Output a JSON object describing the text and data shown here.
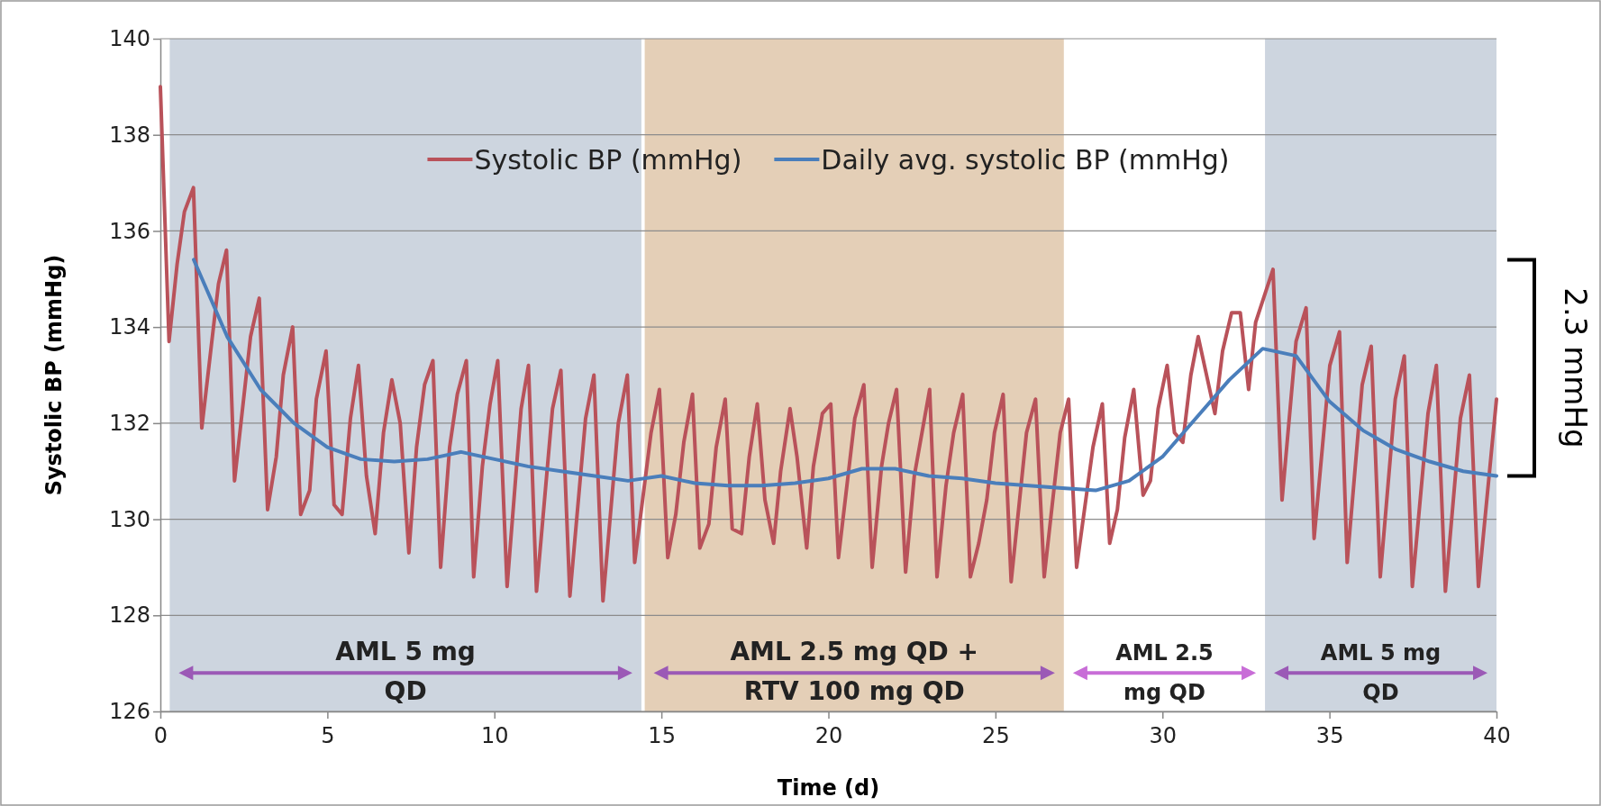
{
  "chart_data": {
    "type": "line",
    "xlabel": "Time (d)",
    "ylabel": "Systolic BP (mmHg)",
    "xlim": [
      0,
      40
    ],
    "xticks": [
      0,
      5,
      10,
      15,
      20,
      25,
      30,
      35,
      40
    ],
    "ylim": [
      126,
      140
    ],
    "yticks": [
      126,
      128,
      130,
      132,
      134,
      136,
      138,
      140
    ],
    "grid": "y",
    "legend": "top",
    "series": [
      {
        "name": "Systolic BP (mmHg)",
        "color": "#b9525a",
        "x": [
          0,
          0.26,
          0.5,
          0.72,
          0.99,
          1.24,
          1.74,
          1.98,
          2.22,
          2.7,
          2.96,
          3.21,
          3.47,
          3.68,
          3.96,
          4.2,
          4.47,
          4.67,
          4.96,
          5.2,
          5.44,
          5.69,
          5.93,
          6.17,
          6.43,
          6.68,
          6.93,
          7.18,
          7.44,
          7.67,
          7.91,
          8.16,
          8.39,
          8.66,
          8.89,
          9.16,
          9.38,
          9.64,
          9.87,
          10.1,
          10.38,
          10.8,
          11.02,
          11.26,
          11.74,
          11.99,
          12.26,
          12.73,
          12.98,
          13.25,
          13.71,
          13.98,
          14.2,
          14.69,
          14.94,
          15.19,
          15.43,
          15.67,
          15.93,
          16.15,
          16.42,
          16.64,
          16.91,
          17.12,
          17.4,
          17.63,
          17.87,
          18.1,
          18.36,
          18.57,
          18.85,
          19.06,
          19.35,
          19.55,
          19.82,
          20.07,
          20.3,
          20.79,
          21.06,
          21.31,
          21.59,
          21.8,
          22.04,
          22.31,
          22.57,
          22.8,
          23.03,
          23.25,
          23.52,
          23.75,
          24.02,
          24.25,
          24.5,
          24.74,
          24.97,
          25.23,
          25.47,
          25.93,
          26.2,
          26.46,
          26.94,
          27.19,
          27.43,
          27.92,
          28.2,
          28.42,
          28.65,
          28.87,
          29.14,
          29.42,
          29.64,
          29.87,
          30.14,
          30.36,
          30.61,
          30.85,
          31.07,
          31.57,
          31.8,
          32.07,
          32.33,
          32.58,
          32.79,
          33.31,
          33.58,
          34.0,
          34.3,
          34.54,
          35.01,
          35.3,
          35.53,
          35.98,
          36.25,
          36.52,
          36.97,
          37.24,
          37.48,
          37.95,
          38.2,
          38.47,
          38.92,
          39.19,
          39.46,
          40
        ],
        "values": [
          139.0,
          133.7,
          135.3,
          136.4,
          136.9,
          131.9,
          134.9,
          135.6,
          130.8,
          133.8,
          134.6,
          130.2,
          131.3,
          133.0,
          134.0,
          130.1,
          130.6,
          132.5,
          133.5,
          130.3,
          130.1,
          132.1,
          133.2,
          130.9,
          129.7,
          131.8,
          132.9,
          132.0,
          129.3,
          131.5,
          132.8,
          133.3,
          129.0,
          131.5,
          132.6,
          133.3,
          128.8,
          131.1,
          132.4,
          133.3,
          128.6,
          132.3,
          133.2,
          128.5,
          132.3,
          133.1,
          128.4,
          132.1,
          133.0,
          128.3,
          132.0,
          133.0,
          129.1,
          131.8,
          132.7,
          129.2,
          130.1,
          131.6,
          132.6,
          129.4,
          129.9,
          131.5,
          132.5,
          129.8,
          129.7,
          131.3,
          132.4,
          130.4,
          129.5,
          131.0,
          132.3,
          131.3,
          129.4,
          131.1,
          132.2,
          132.4,
          129.2,
          132.1,
          132.8,
          129.0,
          131.1,
          132.0,
          132.7,
          128.9,
          130.9,
          131.8,
          132.7,
          128.8,
          130.7,
          131.8,
          132.6,
          128.8,
          129.5,
          130.4,
          131.8,
          132.6,
          128.7,
          131.8,
          132.5,
          128.8,
          131.8,
          132.5,
          129.0,
          131.5,
          132.4,
          129.5,
          130.2,
          131.7,
          132.7,
          130.5,
          130.8,
          132.3,
          133.2,
          131.8,
          131.6,
          133.0,
          133.8,
          132.2,
          133.5,
          134.3,
          134.3,
          132.7,
          134.1,
          135.2,
          130.4,
          133.7,
          134.4,
          129.6,
          133.2,
          133.9,
          129.1,
          132.8,
          133.6,
          128.8,
          132.5,
          133.4,
          128.6,
          132.2,
          133.2,
          128.5,
          132.1,
          133.0,
          128.6,
          132.5
        ]
      },
      {
        "name": "Daily avg. systolic BP (mmHg)",
        "color": "#4a7ebb",
        "x": [
          1,
          2,
          3,
          4,
          5,
          6,
          7,
          8,
          9,
          10,
          11,
          12,
          13,
          14,
          15,
          16,
          17,
          18,
          19,
          20,
          21,
          22,
          23,
          24,
          25,
          26,
          27,
          28,
          29,
          30,
          31,
          32,
          33,
          34,
          35,
          36,
          37,
          38,
          39,
          40
        ],
        "values": [
          135.4,
          133.8,
          132.7,
          132.0,
          131.5,
          131.25,
          131.2,
          131.25,
          131.4,
          131.25,
          131.1,
          131.0,
          130.9,
          130.8,
          130.9,
          130.75,
          130.7,
          130.7,
          130.75,
          130.85,
          131.05,
          131.05,
          130.9,
          130.85,
          130.75,
          130.7,
          130.65,
          130.6,
          130.8,
          131.3,
          132.1,
          132.9,
          133.55,
          133.4,
          132.45,
          131.85,
          131.45,
          131.2,
          131.0,
          130.9
        ]
      }
    ],
    "bands": [
      {
        "axis": "x",
        "from": 0.28,
        "to": 14.4,
        "label": "AML 5 mg\nQD",
        "color": "#cdd5df"
      },
      {
        "axis": "x",
        "from": 14.5,
        "to": 27.05,
        "label": "AML 2.5 mg QD +\nRTV 100 mg QD",
        "color": "#e4cfb7"
      },
      {
        "axis": "x",
        "from": 27.05,
        "to": 33.07,
        "label": "AML 2.5\nmg QD",
        "color": "#ffffff"
      },
      {
        "axis": "x",
        "from": 33.07,
        "to": 40,
        "label": "AML 5 mg\nQD",
        "color": "#cdd5df"
      }
    ],
    "annotations": [
      "2.3 mmHg"
    ]
  }
}
